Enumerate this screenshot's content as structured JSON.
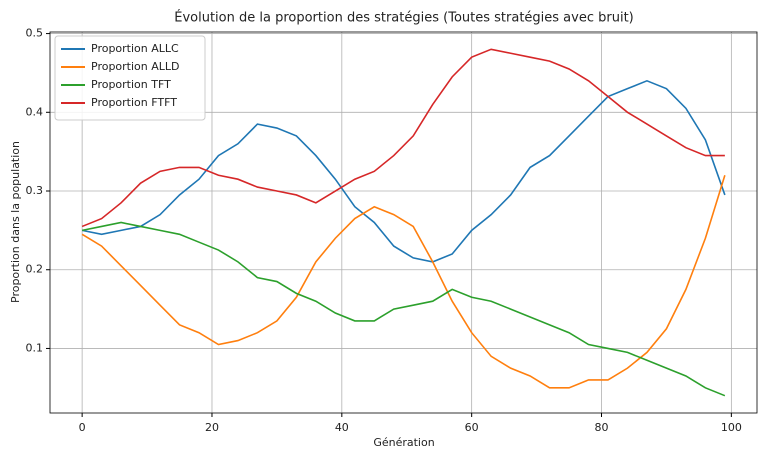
{
  "chart_data": {
    "type": "line",
    "title": "Évolution de la proportion des stratégies (Toutes stratégies avec bruit)",
    "x_label": "Génération",
    "y_label": "Proportion dans la population",
    "x": [
      0,
      3,
      6,
      9,
      12,
      15,
      18,
      21,
      24,
      27,
      30,
      33,
      36,
      39,
      42,
      45,
      48,
      51,
      54,
      57,
      60,
      63,
      66,
      69,
      72,
      75,
      78,
      81,
      84,
      87,
      90,
      93,
      96,
      99
    ],
    "series": [
      {
        "name": "Proportion ALLC",
        "color": "#1f77b4",
        "values": [
          0.25,
          0.245,
          0.25,
          0.255,
          0.27,
          0.295,
          0.315,
          0.345,
          0.36,
          0.385,
          0.38,
          0.37,
          0.345,
          0.315,
          0.28,
          0.26,
          0.23,
          0.215,
          0.21,
          0.22,
          0.25,
          0.27,
          0.295,
          0.33,
          0.345,
          0.37,
          0.395,
          0.42,
          0.43,
          0.44,
          0.43,
          0.405,
          0.365,
          0.295
        ]
      },
      {
        "name": "Proportion ALLD",
        "color": "#ff7f0e",
        "values": [
          0.245,
          0.23,
          0.205,
          0.18,
          0.155,
          0.13,
          0.12,
          0.105,
          0.11,
          0.12,
          0.135,
          0.165,
          0.21,
          0.24,
          0.265,
          0.28,
          0.27,
          0.255,
          0.21,
          0.16,
          0.12,
          0.09,
          0.075,
          0.065,
          0.05,
          0.05,
          0.06,
          0.06,
          0.075,
          0.095,
          0.125,
          0.175,
          0.24,
          0.32
        ]
      },
      {
        "name": "Proportion TFT",
        "color": "#2ca02c",
        "values": [
          0.25,
          0.255,
          0.26,
          0.255,
          0.25,
          0.245,
          0.235,
          0.225,
          0.21,
          0.19,
          0.185,
          0.17,
          0.16,
          0.145,
          0.135,
          0.135,
          0.15,
          0.155,
          0.16,
          0.175,
          0.165,
          0.16,
          0.15,
          0.14,
          0.13,
          0.12,
          0.105,
          0.1,
          0.095,
          0.085,
          0.075,
          0.065,
          0.05,
          0.04
        ]
      },
      {
        "name": "Proportion FTFT",
        "color": "#d62728",
        "values": [
          0.255,
          0.265,
          0.285,
          0.31,
          0.325,
          0.33,
          0.33,
          0.32,
          0.315,
          0.305,
          0.3,
          0.295,
          0.285,
          0.3,
          0.315,
          0.325,
          0.345,
          0.37,
          0.41,
          0.445,
          0.47,
          0.48,
          0.475,
          0.47,
          0.465,
          0.455,
          0.44,
          0.42,
          0.4,
          0.385,
          0.37,
          0.355,
          0.345,
          0.345
        ]
      }
    ],
    "xlim": [
      -4.95,
      103.95
    ],
    "ylim": [
      0.018,
      0.502
    ],
    "xticks": [
      0,
      20,
      40,
      60,
      80,
      100
    ],
    "yticks": [
      0.1,
      0.2,
      0.3,
      0.4,
      0.5
    ],
    "grid": true,
    "legend": "upper-left"
  }
}
